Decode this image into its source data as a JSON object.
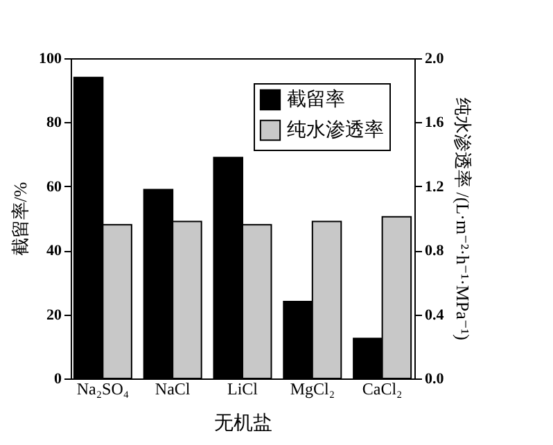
{
  "chart_data": {
    "type": "bar",
    "xlabel": "无机盐",
    "ylabel": "截留率/%",
    "y2label": "纯水渗透率 /(L·m⁻²·h⁻¹·MPa⁻¹)",
    "categories": [
      "Na₂SO₄",
      "NaCl",
      "LiCl",
      "MgCl₂",
      "CaCl₂"
    ],
    "series": [
      {
        "name": "截留率",
        "color": "#000000",
        "values": [
          94,
          59,
          69,
          24,
          12.5
        ]
      },
      {
        "name": "纯水渗透率",
        "color": "#c8c8c8",
        "axis": "y2",
        "values": [
          0.96,
          0.98,
          0.96,
          0.98,
          1.01
        ]
      }
    ],
    "ylim": [
      0,
      100
    ],
    "yticks": [
      0,
      20,
      40,
      60,
      80,
      100
    ],
    "y2lim": [
      0,
      2.0
    ],
    "y2ticks": [
      {
        "value": 0,
        "label": "0.0"
      },
      {
        "value": 0.4,
        "label": "0.4"
      },
      {
        "value": 0.8,
        "label": "0.8"
      },
      {
        "value": 1.2,
        "label": "1.2"
      },
      {
        "value": 1.6,
        "label": "1.6"
      },
      {
        "value": 2,
        "label": "2.0"
      }
    ],
    "grid": false,
    "legend": "top right"
  }
}
